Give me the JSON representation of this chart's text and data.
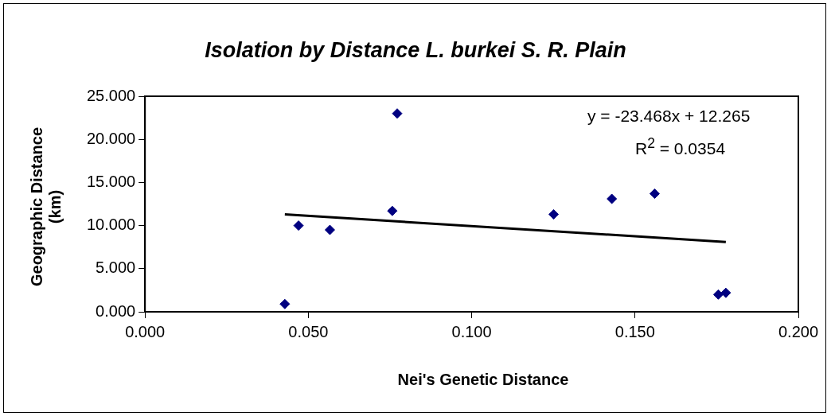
{
  "chart_data": {
    "type": "scatter",
    "title": "Isolation by Distance L. burkei S. R. Plain",
    "xlabel": "Nei's Genetic Distance",
    "ylabel": "Geographic Distance (km)",
    "xlim": [
      0,
      0.2
    ],
    "xticks": [
      {
        "value": 0,
        "label": "0.000"
      },
      {
        "value": 0.05,
        "label": "0.050"
      },
      {
        "value": 0.1,
        "label": "0.100"
      },
      {
        "value": 0.15,
        "label": "0.150"
      },
      {
        "value": 0.2,
        "label": "0.200"
      }
    ],
    "ylim": [
      0,
      25
    ],
    "yticks": [
      {
        "value": 0,
        "label": "0.000"
      },
      {
        "value": 5,
        "label": "5.000"
      },
      {
        "value": 10,
        "label": "10.000"
      },
      {
        "value": 15,
        "label": "15.000"
      },
      {
        "value": 20,
        "label": "20.000"
      },
      {
        "value": 25,
        "label": "25.000"
      }
    ],
    "grid": false,
    "legend": false,
    "marker": "diamond",
    "annotations": [
      "y = -23.468x + 12.265",
      "R$^{2}$ = 0.0354"
    ],
    "series": [
      {
        "type": "scatter",
        "color": "#000080",
        "x": [
          0.0428,
          0.047,
          0.0566,
          0.0757,
          0.0772,
          0.1251,
          0.1429,
          0.156,
          0.1755,
          0.1778
        ],
        "values": [
          0.9,
          10.0,
          9.5,
          11.7,
          23.0,
          11.3,
          13.1,
          13.7,
          2.0,
          2.2
        ]
      },
      {
        "type": "line",
        "color": "#000000",
        "marker": "none",
        "line_style": "solid",
        "x": [
          0.0428,
          0.1778
        ],
        "values": [
          11.3,
          8.1
        ]
      }
    ]
  }
}
